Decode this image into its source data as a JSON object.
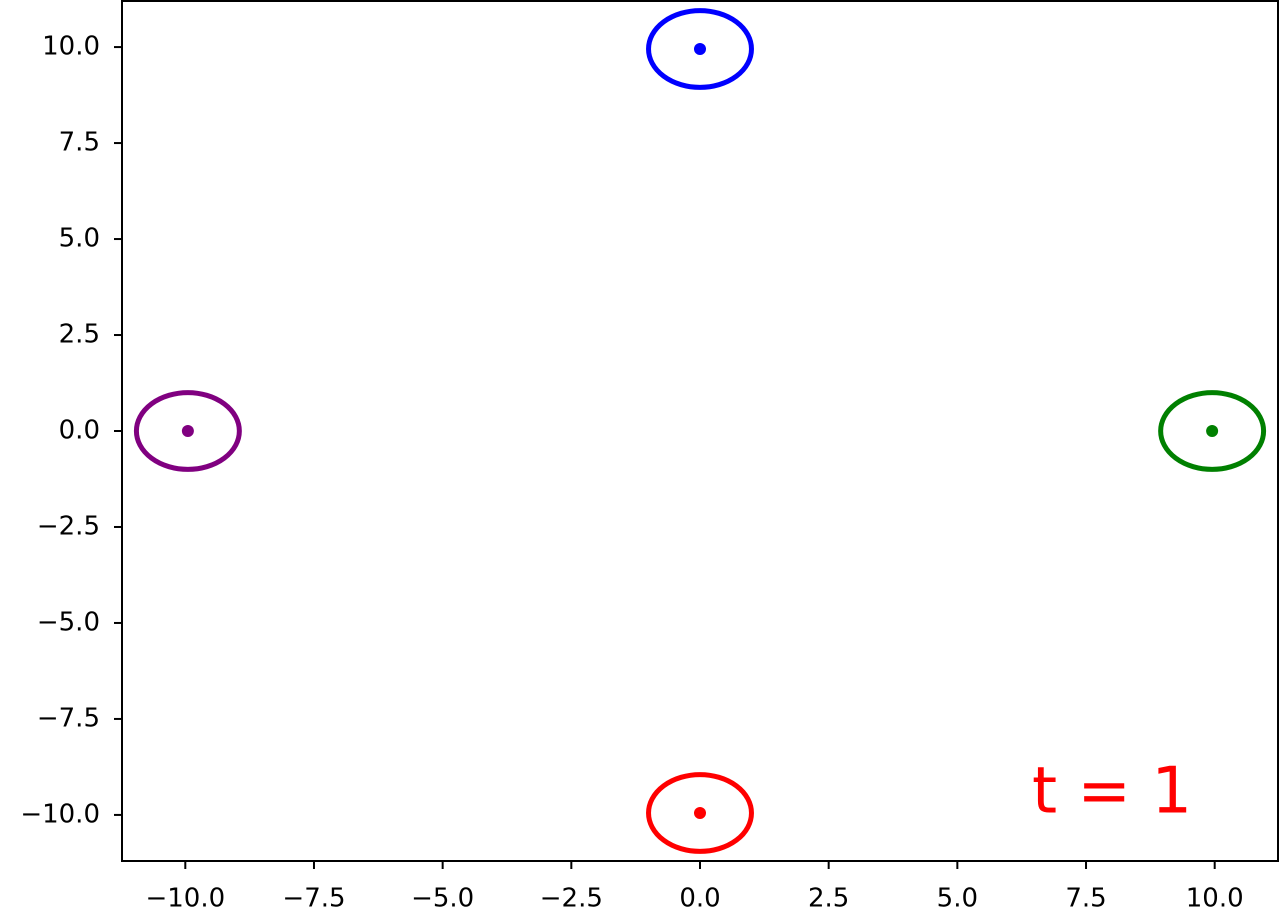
{
  "chart_data": {
    "type": "scatter",
    "series": [
      {
        "color": "blue",
        "x": [
          0
        ],
        "values": [
          9.95
        ],
        "radius": [
          1
        ]
      },
      {
        "color": "green",
        "x": [
          9.95
        ],
        "values": [
          0
        ],
        "radius": [
          1
        ]
      },
      {
        "color": "red",
        "x": [
          0
        ],
        "values": [
          -9.95
        ],
        "radius": [
          1
        ]
      },
      {
        "color": "purple",
        "x": [
          -9.95
        ],
        "values": [
          0
        ],
        "radius": [
          1
        ]
      }
    ],
    "annotation": {
      "text": "t = 1",
      "color": "red"
    },
    "xlim": [
      -11.23,
      11.23
    ],
    "ylim": [
      -11.2,
      11.2
    ],
    "xticks": [
      {
        "value": -10,
        "label": "−10.0"
      },
      {
        "value": -7.5,
        "label": "−7.5"
      },
      {
        "value": -5,
        "label": "−5.0"
      },
      {
        "value": -2.5,
        "label": "−2.5"
      },
      {
        "value": 0,
        "label": "0.0"
      },
      {
        "value": 2.5,
        "label": "2.5"
      },
      {
        "value": 5,
        "label": "5.0"
      },
      {
        "value": 7.5,
        "label": "7.5"
      },
      {
        "value": 10,
        "label": "10.0"
      }
    ],
    "yticks": [
      {
        "value": -10,
        "label": "−10.0"
      },
      {
        "value": -7.5,
        "label": "−7.5"
      },
      {
        "value": -5,
        "label": "−5.0"
      },
      {
        "value": -2.5,
        "label": "−2.5"
      },
      {
        "value": 0,
        "label": "0.0"
      },
      {
        "value": 2.5,
        "label": "2.5"
      },
      {
        "value": 5,
        "label": "5.0"
      },
      {
        "value": 7.5,
        "label": "7.5"
      },
      {
        "value": 10,
        "label": "10.0"
      }
    ],
    "grid": false
  }
}
